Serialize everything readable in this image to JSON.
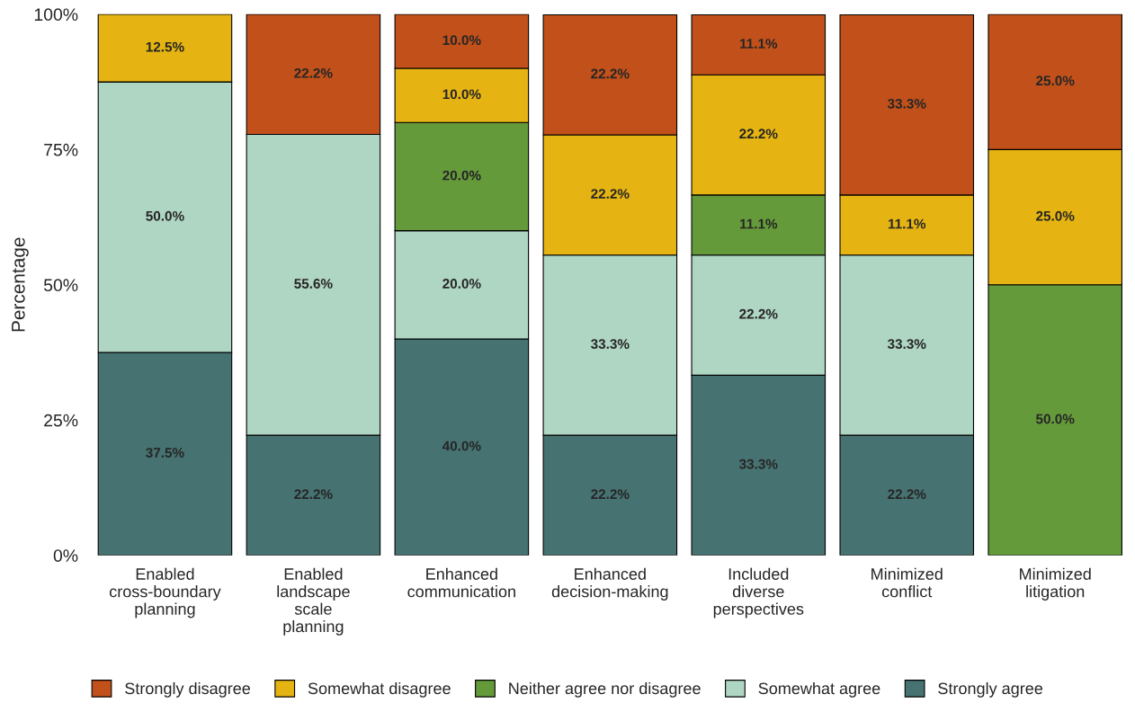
{
  "chart_data": {
    "type": "bar",
    "stacked": true,
    "ylabel": "Percentage",
    "categories": [
      "Enabled\ncross-boundary\nplanning",
      "Enabled\nlandscape\nscale\nplanning",
      "Enhanced\ncommunication",
      "Enhanced\ndecision-making",
      "Included\ndiverse\nperspectives",
      "Minimized\nconflict",
      "Minimized\nlitigation"
    ],
    "series": [
      {
        "name": "Strongly agree",
        "color": "#467271",
        "values": [
          37.5,
          22.2,
          40.0,
          22.2,
          33.3,
          22.2,
          null
        ],
        "value_labels": [
          "37.5%",
          "22.2%",
          "40.0%",
          "22.2%",
          "33.3%",
          "22.2%",
          null
        ]
      },
      {
        "name": "Somewhat agree",
        "color": "#afd5c3",
        "values": [
          50.0,
          55.6,
          20.0,
          33.3,
          22.2,
          33.3,
          null
        ],
        "value_labels": [
          "50.0%",
          "55.6%",
          "20.0%",
          "33.3%",
          "22.2%",
          "33.3%",
          null
        ]
      },
      {
        "name": "Neither agree nor disagree",
        "color": "#659a3b",
        "values": [
          null,
          null,
          20.0,
          null,
          11.1,
          null,
          50.0
        ],
        "value_labels": [
          null,
          null,
          "20.0%",
          null,
          "11.1%",
          null,
          "50.0%"
        ]
      },
      {
        "name": "Somewhat disagree",
        "color": "#e6b412",
        "values": [
          12.5,
          null,
          10.0,
          22.2,
          22.2,
          11.1,
          25.0
        ],
        "value_labels": [
          "12.5%",
          null,
          "10.0%",
          "22.2%",
          "22.2%",
          "11.1%",
          "25.0%"
        ]
      },
      {
        "name": "Strongly disagree",
        "color": "#c1501a",
        "values": [
          null,
          22.2,
          10.0,
          22.2,
          11.1,
          33.3,
          25.0
        ],
        "value_labels": [
          null,
          "22.2%",
          "10.0%",
          "22.2%",
          "11.1%",
          "33.3%",
          "25.0%"
        ]
      }
    ],
    "ylim": [
      0,
      100
    ],
    "yticks": [
      {
        "value": 0,
        "label": "0%"
      },
      {
        "value": 25,
        "label": "25%"
      },
      {
        "value": 50,
        "label": "50%"
      },
      {
        "value": 75,
        "label": "75%"
      },
      {
        "value": 100,
        "label": "100%"
      }
    ],
    "legend": "bottom",
    "grid": false
  }
}
